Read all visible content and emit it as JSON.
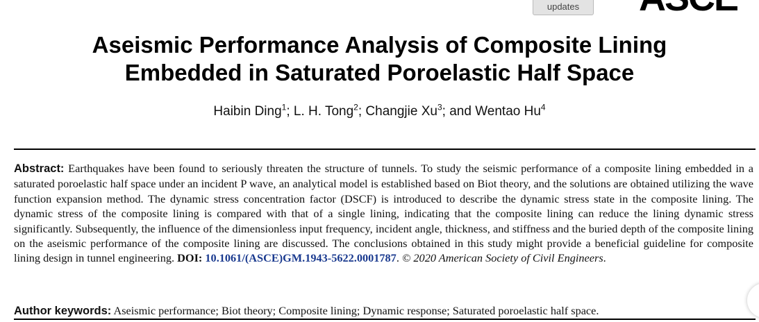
{
  "header": {
    "updates_badge": "updates",
    "publisher_logo": "ASCE"
  },
  "title_line1": "Aseismic Performance Analysis of Composite Lining",
  "title_line2": "Embedded in Saturated Poroelastic Half Space",
  "authors": [
    {
      "name": "Haibin Ding",
      "sup": "1",
      "sep": "; "
    },
    {
      "name": "L. H. Tong",
      "sup": "2",
      "sep": "; "
    },
    {
      "name": "Changjie Xu",
      "sup": "3",
      "sep": "; and "
    },
    {
      "name": "Wentao Hu",
      "sup": "4",
      "sep": ""
    }
  ],
  "abstract": {
    "label": "Abstract:",
    "text": "Earthquakes have been found to seriously threaten the structure of tunnels. To study the seismic performance of a composite lining embedded in a saturated poroelastic half space under an incident P wave, an analytical model is established based on Biot theory, and the solutions are obtained utilizing the wave function expansion method. The dynamic stress concentration factor (DSCF) is introduced to describe the dynamic stress state in the composite lining. The dynamic stress of the composite lining is compared with that of a single lining, indicating that the composite lining can reduce the lining dynamic stress significantly. Subsequently, the influence of the dimensionless input frequency, incident angle, thickness, and stiffness and the buried depth of the composite lining on the aseismic performance of the composite lining are discussed. The conclusions obtained in this study might provide a beneficial guideline for composite lining design in tunnel engineering.",
    "doi_label": "DOI:",
    "doi": "10.1061/(ASCE)GM.1943-5622.0001787",
    "copyright": "© 2020 American Society of Civil Engineers"
  },
  "keywords": {
    "label": "Author keywords:",
    "text": "Aseismic performance; Biot theory; Composite lining; Dynamic response; Saturated poroelastic half space."
  }
}
